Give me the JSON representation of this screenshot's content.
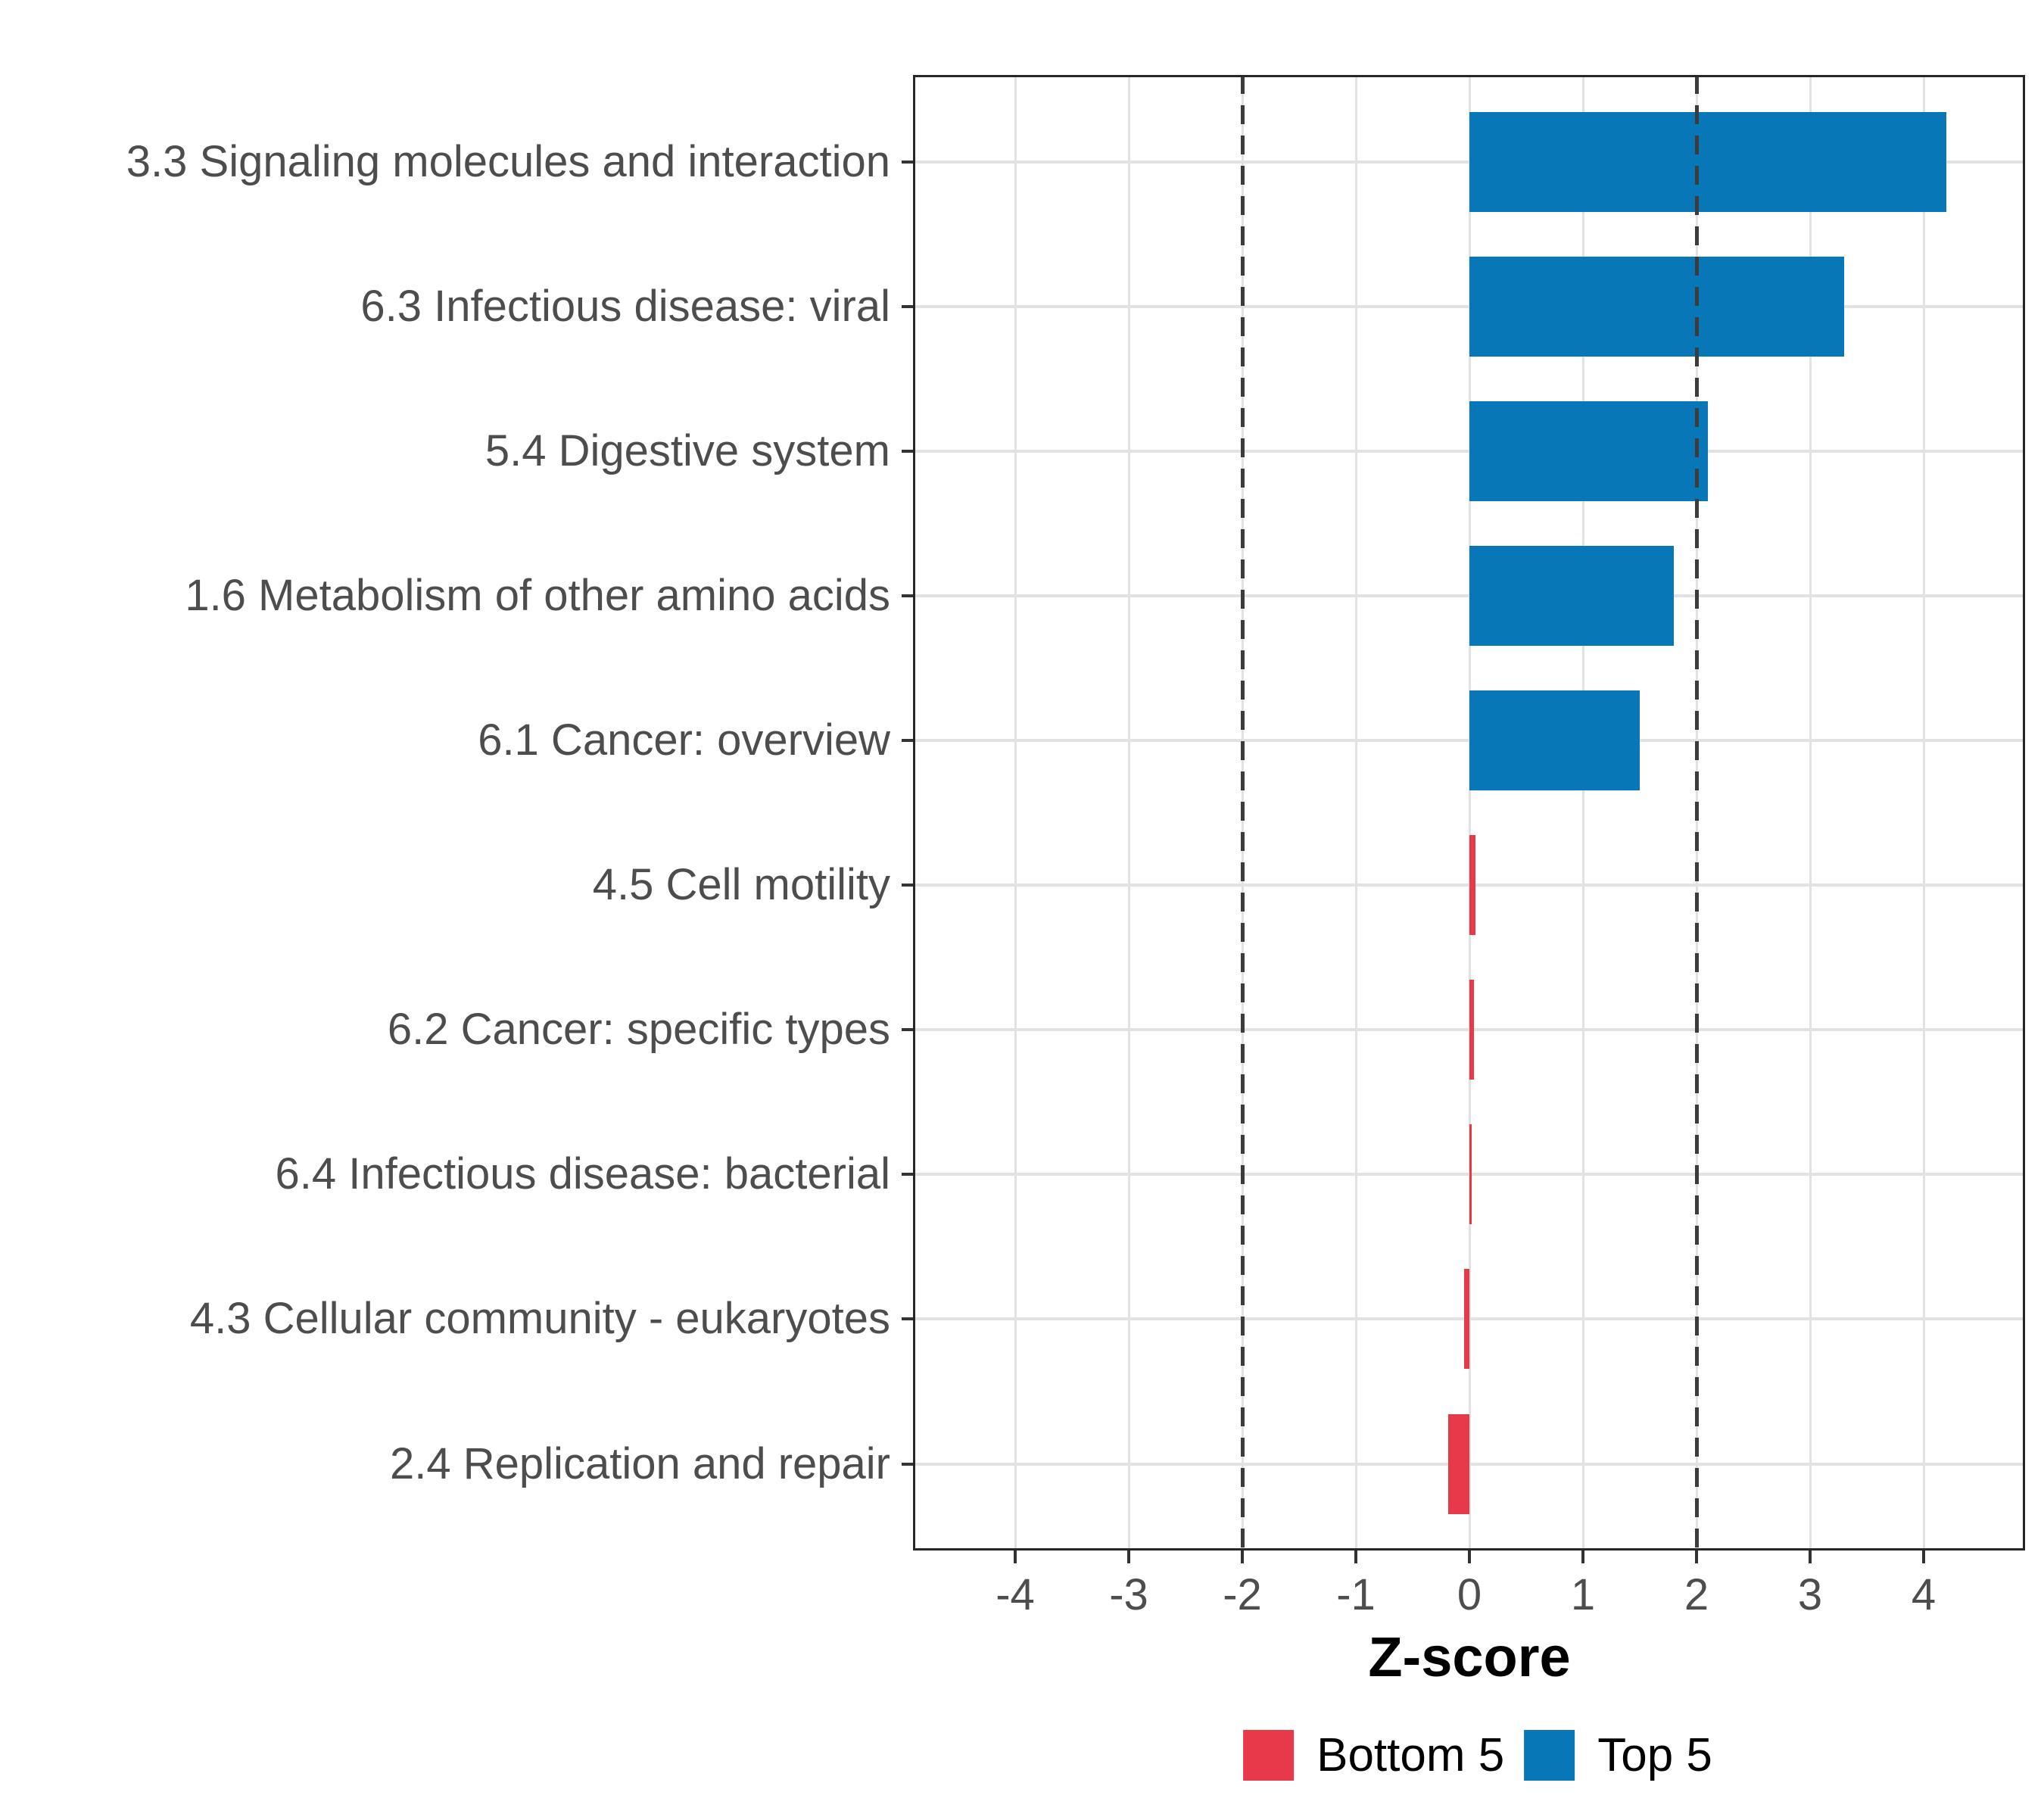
{
  "chart_data": {
    "type": "bar",
    "orientation": "horizontal",
    "xlabel": "Z-score",
    "ylabel": "",
    "categories": [
      "3.3 Signaling molecules and interaction",
      "6.3 Infectious disease: viral",
      "5.4 Digestive system",
      "1.6 Metabolism of other amino acids",
      "6.1 Cancer: overview",
      "4.5 Cell motility",
      "6.2 Cancer: specific types",
      "6.4 Infectious disease: bacterial",
      "4.3 Cellular community - eukaryotes",
      "2.4 Replication and repair"
    ],
    "values": [
      4.2,
      3.3,
      2.1,
      1.8,
      1.5,
      0.05,
      0.04,
      0.02,
      -0.05,
      -0.19
    ],
    "groups": [
      "Top 5",
      "Top 5",
      "Top 5",
      "Top 5",
      "Top 5",
      "Bottom 5",
      "Bottom 5",
      "Bottom 5",
      "Bottom 5",
      "Bottom 5"
    ],
    "series_colors": {
      "Top 5": "#0777b8",
      "Bottom 5": "#e8394a"
    },
    "x_ticks": [
      -4,
      -3,
      -2,
      -1,
      0,
      1,
      2,
      3,
      4
    ],
    "xlim": [
      -4.9,
      4.9
    ],
    "reference_lines": [
      -2,
      2
    ],
    "grid": "major-only",
    "gridline_color": "#e2e2e2",
    "reference_line_color": "#3c3c3c",
    "axis_text_color": "#4d4d4d",
    "legend": {
      "position": "bottom",
      "items": [
        {
          "label": "Bottom 5",
          "color": "#e8394a"
        },
        {
          "label": "Top 5",
          "color": "#0777b8"
        }
      ]
    }
  }
}
